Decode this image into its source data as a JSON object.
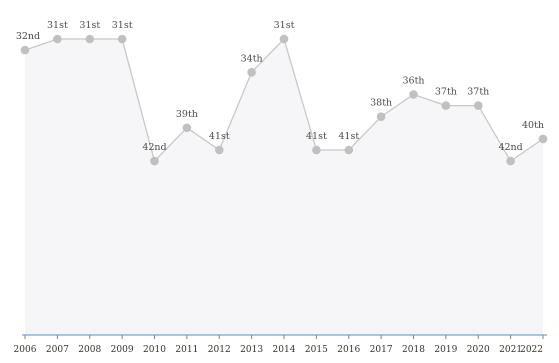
{
  "chart_data": {
    "type": "line",
    "x": [
      "2006",
      "2007",
      "2008",
      "2009",
      "2010",
      "2011",
      "2012",
      "2013",
      "2014",
      "2015",
      "2016",
      "2017",
      "2018",
      "2019",
      "2020",
      "2021",
      "2022"
    ],
    "y": [
      32,
      31,
      31,
      31,
      42,
      39,
      41,
      34,
      31,
      41,
      41,
      38,
      36,
      37,
      37,
      42,
      40
    ],
    "point_labels": [
      "32nd",
      "31st",
      "31st",
      "31st",
      "42nd",
      "39th",
      "41st",
      "34th",
      "31st",
      "41st",
      "41st",
      "38th",
      "36th",
      "37th",
      "37th",
      "42nd",
      "40th"
    ],
    "y_scale": "inverted (rank 31 at top)",
    "title": "",
    "xlabel": "",
    "ylabel": "",
    "grid": false,
    "legend": "none"
  },
  "colors": {
    "line": "#c8c8c8",
    "marker": "#c0c0c0",
    "area_fill": "#f6f6f8",
    "axis": "#5a8fc4"
  }
}
